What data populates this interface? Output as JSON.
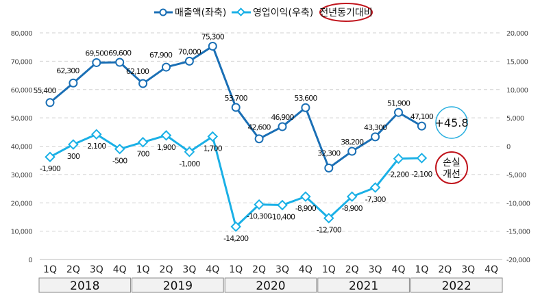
{
  "chart_data": {
    "type": "line",
    "title": "",
    "legend": {
      "position": "top",
      "items": [
        "매출액(좌축)",
        "영업이익(우축)",
        "전년동기대비"
      ]
    },
    "quarters": [
      "1Q",
      "2Q",
      "3Q",
      "4Q",
      "1Q",
      "2Q",
      "3Q",
      "4Q",
      "1Q",
      "2Q",
      "3Q",
      "4Q",
      "1Q",
      "2Q",
      "3Q",
      "4Q",
      "1Q",
      "2Q",
      "3Q",
      "4Q"
    ],
    "years": [
      "2018",
      "2019",
      "2020",
      "2021",
      "2022"
    ],
    "y_left": {
      "range": [
        0,
        80000
      ],
      "ticks": [
        "0",
        "10,000",
        "20,000",
        "30,000",
        "40,000",
        "50,000",
        "60,000",
        "70,000",
        "80,000"
      ],
      "tick_values": [
        0,
        10000,
        20000,
        30000,
        40000,
        50000,
        60000,
        70000,
        80000
      ]
    },
    "y_right": {
      "range": [
        -20000,
        20000
      ],
      "ticks": [
        "-20,000",
        "-15,000",
        "-10,000",
        "-5,000",
        "0",
        "5,000",
        "10,000",
        "15,000",
        "20,000"
      ],
      "tick_values": [
        -20000,
        -15000,
        -10000,
        -5000,
        0,
        5000,
        10000,
        15000,
        20000
      ]
    },
    "grid": true,
    "series": [
      {
        "name": "매출액(좌축)",
        "axis": "left",
        "color": "#1a6fb5",
        "values": [
          55400,
          62300,
          69500,
          69600,
          62100,
          67900,
          70000,
          75300,
          53700,
          42600,
          46900,
          53600,
          32300,
          38200,
          43300,
          51900,
          47100
        ],
        "labels": [
          "55,400",
          "62,300",
          "69,500",
          "69,600",
          "62,100",
          "67,900",
          "70,000",
          "75,300",
          "53,700",
          "42,600",
          "46,900",
          "53,600",
          "32,300",
          "38,200",
          "43,300",
          "51,900",
          "47,100"
        ]
      },
      {
        "name": "영업이익(우축)",
        "axis": "right",
        "color": "#1ab0e6",
        "values": [
          -1900,
          300,
          2100,
          -500,
          700,
          1900,
          -1000,
          1700,
          -14200,
          -10300,
          -10400,
          -8900,
          -12700,
          -8900,
          -7300,
          -2200,
          -2100
        ],
        "labels": [
          "-1,900",
          "300",
          "2,100",
          "-500",
          "700",
          "1,900",
          "-1,000",
          "1,700",
          "-14,200",
          "-10,300",
          "-10,400",
          "-8,900",
          "-12,700",
          "-8,900",
          "-7,300",
          "-2,200",
          "-2,100"
        ]
      }
    ],
    "annotations": [
      {
        "text": "+45.8",
        "color": "#2bb0e0"
      },
      {
        "text": "손실",
        "text2": "개선",
        "color": "#c0141c"
      }
    ]
  }
}
